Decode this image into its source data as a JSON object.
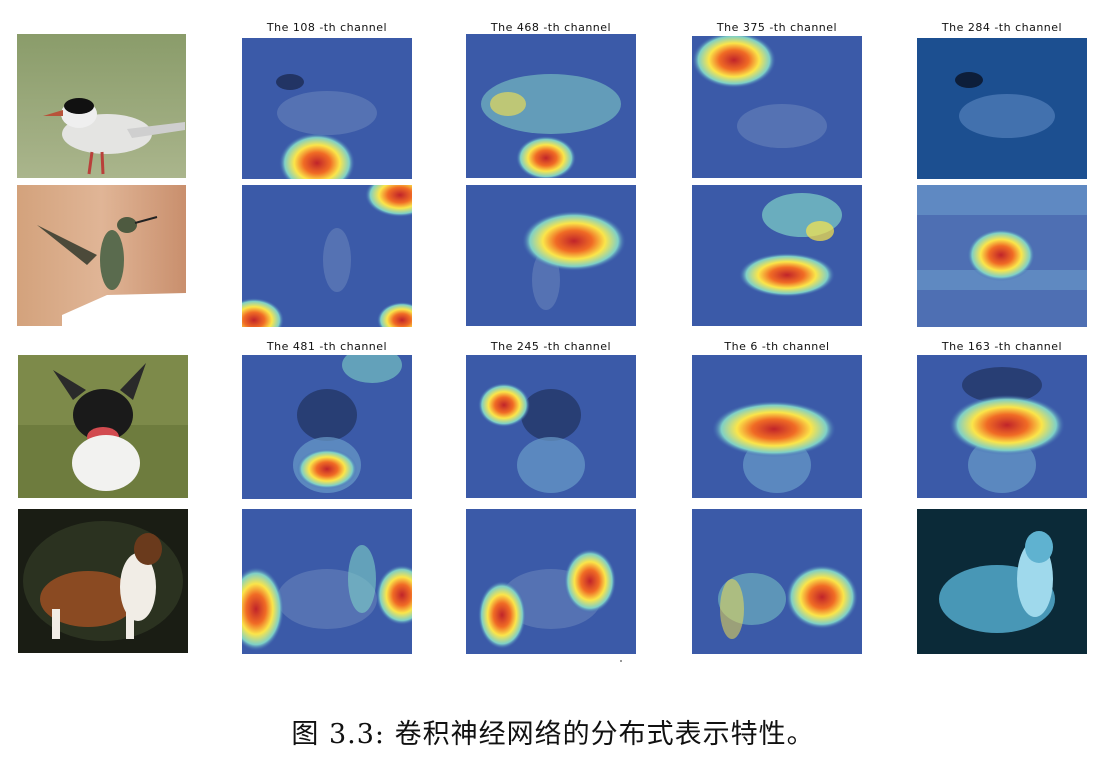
{
  "figure": {
    "caption": "图 3.3: 卷积神经网络的分布式表示特性。",
    "group_top": {
      "channels": [
        "The 108 -th channel",
        "The 468 -th channel",
        "The 375 -th channel",
        "The 284 -th channel"
      ],
      "rows": [
        "bird-tern",
        "bird-hummingbird"
      ]
    },
    "group_bottom": {
      "channels": [
        "The 481 -th channel",
        "The 245 -th channel",
        "The 6 -th channel",
        "The 163 -th channel"
      ],
      "rows": [
        "dog-terrier",
        "dog-collie"
      ]
    }
  }
}
